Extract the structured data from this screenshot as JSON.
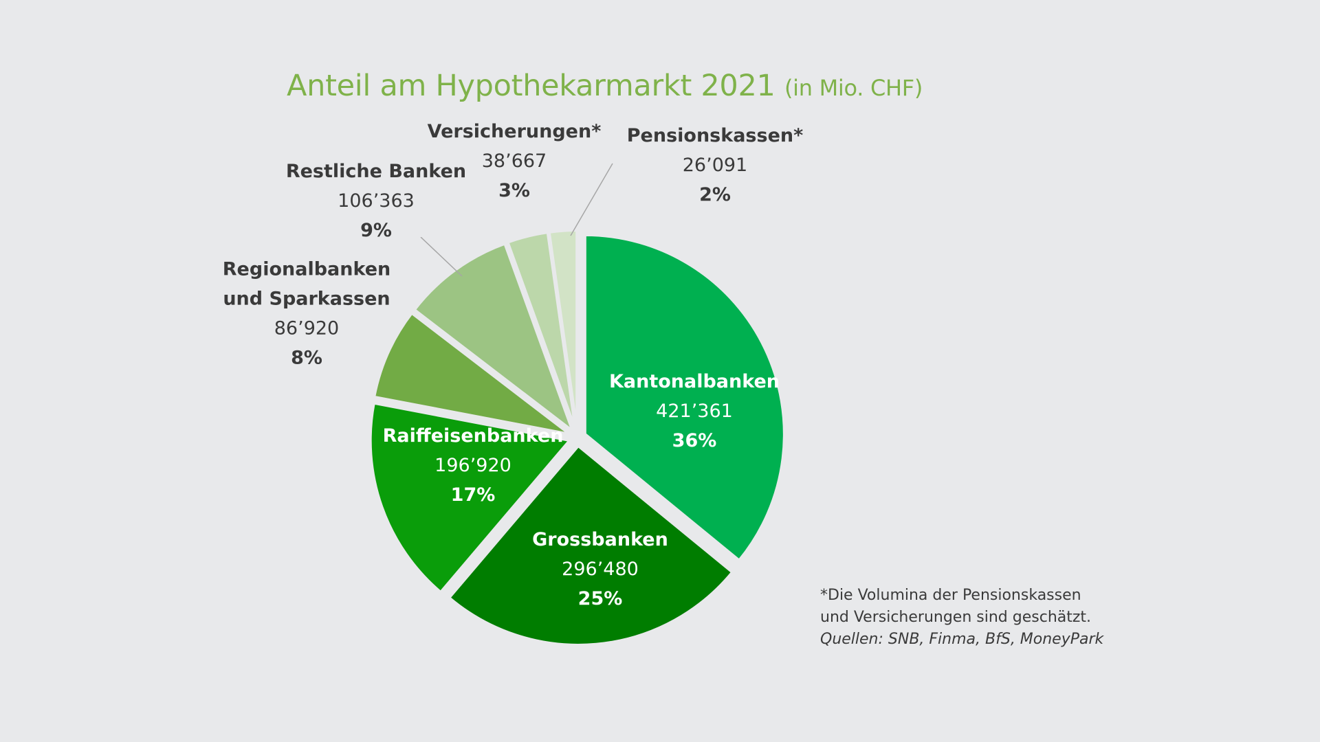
{
  "chart_data": {
    "type": "pie",
    "title": "Anteil am Hypothekarmarkt 2021",
    "title_unit": "(in Mio. CHF)",
    "slices": [
      {
        "label": "Kantonalbanken",
        "value_text": "421’361",
        "value": 421361,
        "percent_text": "36%",
        "color": "#00b050",
        "explode": 1,
        "label_color": "#ffffff"
      },
      {
        "label": "Grossbanken",
        "value_text": "296’480",
        "value": 296480,
        "percent_text": "25%",
        "color": "#007d00",
        "explode": 1,
        "label_color": "#ffffff"
      },
      {
        "label": "Raiffeisenbanken",
        "value_text": "196’920",
        "value": 196920,
        "percent_text": "17%",
        "color": "#0a9d0a",
        "explode": 1,
        "label_color": "#ffffff"
      },
      {
        "label": "Regionalbanken und Sparkassen",
        "value_text": "86’920",
        "value": 86920,
        "percent_text": "8%",
        "color": "#72ab45",
        "explode": 1,
        "label_color": "#3a3a3a"
      },
      {
        "label": "Restliche Banken",
        "value_text": "106’363",
        "value": 106363,
        "percent_text": "9%",
        "color": "#9cc483",
        "explode": 1,
        "label_color": "#3a3a3a"
      },
      {
        "label": "Versicherungen*",
        "value_text": "38’667",
        "value": 38667,
        "percent_text": "3%",
        "color": "#bcd7aa",
        "explode": 1,
        "label_color": "#3a3a3a"
      },
      {
        "label": "Pensionskassen*",
        "value_text": "26’091",
        "value": 26091,
        "percent_text": "2%",
        "color": "#d2e3c6",
        "explode": 1,
        "label_color": "#3a3a3a"
      }
    ]
  },
  "footnote": {
    "line1": "*Die Volumina der Pensionskassen",
    "line2": "und Versicherungen sind geschätzt.",
    "sources": "Quellen: SNB, Finma, BfS, MoneyPark"
  }
}
